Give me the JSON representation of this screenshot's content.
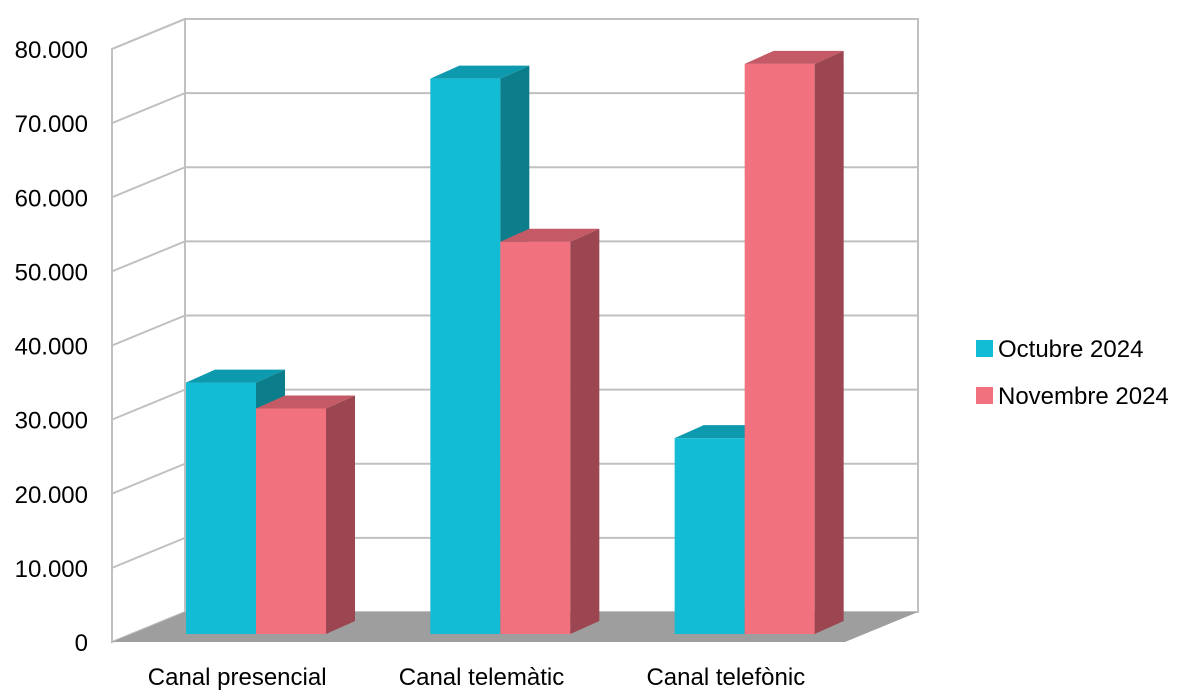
{
  "chart_data": {
    "type": "bar",
    "title": "",
    "xlabel": "",
    "ylabel": "",
    "ylim": [
      0,
      80000
    ],
    "grid": true,
    "legend_position": "right",
    "categories": [
      "Canal presencial",
      "Canal telemàtic",
      "Canal telefònic"
    ],
    "y_ticks": [
      "0",
      "10.000",
      "20.000",
      "30.000",
      "40.000",
      "50.000",
      "60.000",
      "70.000",
      "80.000"
    ],
    "series": [
      {
        "name": "Octubre 2024",
        "values": [
          35000,
          76000,
          27500
        ],
        "color": "#13bcd5",
        "side_color": "#0c7d8a",
        "top_color": "#0e9aae"
      },
      {
        "name": "Novembre 2024",
        "values": [
          31500,
          54000,
          78000
        ],
        "color": "#f2717e",
        "side_color": "#9b4650",
        "top_color": "#c45a66"
      }
    ],
    "style": {
      "wall_color": "#ffffff",
      "grid_color": "#c0c0c0",
      "floor_color": "#9e9e9e"
    }
  }
}
